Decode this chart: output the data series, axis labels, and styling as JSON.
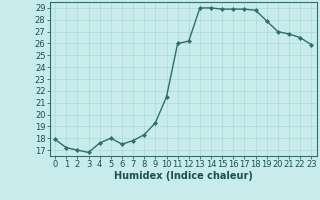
{
  "x": [
    0,
    1,
    2,
    3,
    4,
    5,
    6,
    7,
    8,
    9,
    10,
    11,
    12,
    13,
    14,
    15,
    16,
    17,
    18,
    19,
    20,
    21,
    22,
    23
  ],
  "y": [
    17.9,
    17.2,
    17.0,
    16.8,
    17.6,
    18.0,
    17.5,
    17.8,
    18.3,
    19.3,
    21.5,
    26.0,
    26.2,
    29.0,
    29.0,
    28.9,
    28.9,
    28.9,
    28.8,
    27.9,
    27.0,
    26.8,
    26.5,
    25.9
  ],
  "xlabel": "Humidex (Indice chaleur)",
  "ylim_min": 16.5,
  "ylim_max": 29.5,
  "xlim_min": -0.5,
  "xlim_max": 23.5,
  "yticks": [
    17,
    18,
    19,
    20,
    21,
    22,
    23,
    24,
    25,
    26,
    27,
    28,
    29
  ],
  "xticks": [
    0,
    1,
    2,
    3,
    4,
    5,
    6,
    7,
    8,
    9,
    10,
    11,
    12,
    13,
    14,
    15,
    16,
    17,
    18,
    19,
    20,
    21,
    22,
    23
  ],
  "line_color": "#2d6e6e",
  "marker": "D",
  "marker_size": 2.0,
  "bg_color": "#c8ecec",
  "grid_color": "#aed8d8",
  "axis_color": "#2d6e6e",
  "label_color": "#1a5050",
  "tick_color": "#1a5050",
  "xlabel_fontsize": 7.0,
  "tick_fontsize": 6.0,
  "linewidth": 1.0
}
